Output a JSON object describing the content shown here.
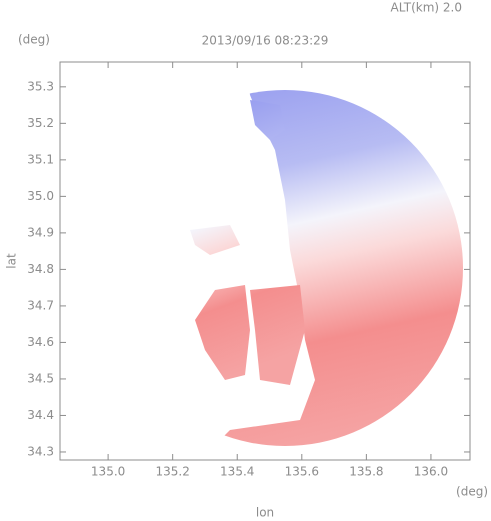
{
  "chart_data": {
    "type": "radar-map",
    "title": "2013/09/16 08:23:29",
    "subtitle": "ALT(km) 2.0",
    "y_unit": "(deg)",
    "x_unit": "(deg)",
    "ylabel": "lat",
    "xlabel": "lon",
    "xlim": [
      134.851,
      136.121
    ],
    "ylim": [
      34.278,
      35.368
    ],
    "xticks": [
      {
        "value": 135,
        "label": "135.0"
      },
      135.2,
      135.4,
      135.6,
      135.8,
      {
        "value": 136,
        "label": "136.0"
      }
    ],
    "yticks": [
      34.3,
      34.4,
      34.5,
      34.6,
      34.7,
      34.8,
      34.9,
      {
        "value": 35,
        "label": "35.0"
      },
      35.1,
      35.2,
      35.3
    ],
    "axis_color": "#8c8c8c"
  }
}
